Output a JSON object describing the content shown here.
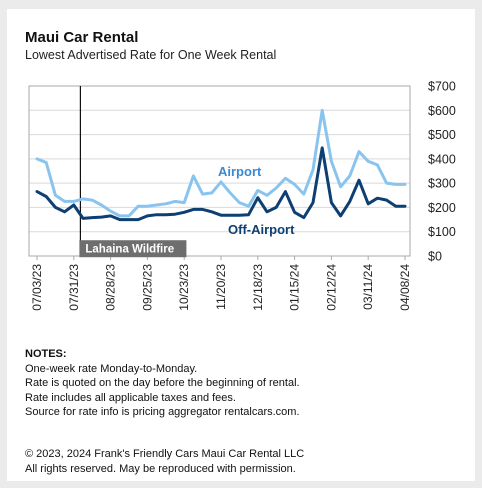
{
  "title": "Maui Car Rental",
  "subtitle": "Lowest Advertised Rate for One Week Rental",
  "notes": {
    "heading": "NOTES:",
    "lines": [
      "One-week rate Monday-to-Monday.",
      "Rate is quoted on the day before the beginning of rental.",
      "Rate includes all applicable taxes and fees.",
      "Source for rate info is pricing aggregator rentalcars.com."
    ]
  },
  "copyright": [
    "© 2023, 2024 Frank's Friendly Cars Maui Car Rental LLC",
    "All rights reserved. May be reproduced with permission."
  ],
  "colors": {
    "airport": "#89c4ef",
    "off_airport": "#0d3f73",
    "event_line": "#111111",
    "event_label_bg": "#6e6e6e"
  },
  "chart_data": {
    "type": "line",
    "x": [
      "07/03/23",
      "07/10/23",
      "07/17/23",
      "07/24/23",
      "07/31/23",
      "08/07/23",
      "08/14/23",
      "08/21/23",
      "08/28/23",
      "09/04/23",
      "09/11/23",
      "09/18/23",
      "09/25/23",
      "10/02/23",
      "10/09/23",
      "10/16/23",
      "10/23/23",
      "10/30/23",
      "11/06/23",
      "11/13/23",
      "11/20/23",
      "11/27/23",
      "12/04/23",
      "12/11/23",
      "12/18/23",
      "12/25/23",
      "01/01/24",
      "01/08/24",
      "01/15/24",
      "01/22/24",
      "01/29/24",
      "02/05/24",
      "02/12/24",
      "02/19/24",
      "02/26/24",
      "03/04/24",
      "03/11/24",
      "03/18/24",
      "03/25/24",
      "04/01/24",
      "04/08/24"
    ],
    "x_tick_labels": [
      "07/03/23",
      "07/31/23",
      "08/28/23",
      "09/25/23",
      "10/23/23",
      "11/20/23",
      "12/18/23",
      "01/15/24",
      "02/12/24",
      "03/11/24",
      "04/08/24"
    ],
    "series": [
      {
        "name": "Airport",
        "values": [
          400,
          385,
          250,
          225,
          225,
          235,
          230,
          210,
          185,
          165,
          165,
          205,
          205,
          210,
          215,
          225,
          220,
          330,
          255,
          260,
          305,
          260,
          220,
          205,
          270,
          250,
          280,
          320,
          295,
          255,
          355,
          600,
          390,
          285,
          330,
          430,
          390,
          375,
          300,
          295,
          295
        ]
      },
      {
        "name": "Off-Airport",
        "values": [
          265,
          245,
          200,
          182,
          210,
          155,
          158,
          160,
          165,
          150,
          150,
          150,
          165,
          170,
          170,
          172,
          180,
          192,
          192,
          182,
          168,
          168,
          168,
          170,
          240,
          182,
          200,
          265,
          180,
          158,
          220,
          445,
          220,
          165,
          225,
          312,
          215,
          238,
          230,
          205,
          205
        ]
      }
    ],
    "ylim": [
      0,
      700
    ],
    "yticks": [
      "$0",
      "$100",
      "$200",
      "$300",
      "$400",
      "$500",
      "$600",
      "$700"
    ],
    "grid": true,
    "annotations": [
      {
        "text": "Airport",
        "series": "Airport"
      },
      {
        "text": "Off-Airport",
        "series": "Off-Airport"
      },
      {
        "text": "Lahaina Wildfire",
        "x": "08/07/23",
        "kind": "event"
      }
    ]
  }
}
